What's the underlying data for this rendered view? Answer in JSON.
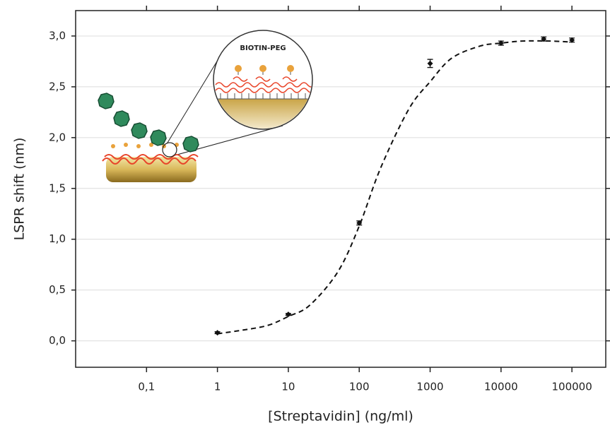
{
  "chart_data": {
    "type": "scatter",
    "x_label": "[Streptavidin]  (ng/ml)",
    "y_label": "LSPR shift  (nm)",
    "x_scale": "log",
    "xlim": [
      0.01,
      300000
    ],
    "ylim": [
      -0.26,
      3.25
    ],
    "xticks": [
      {
        "value": 0.1,
        "label": "0,1"
      },
      1,
      10,
      100,
      1000,
      10000,
      100000
    ],
    "yticks": [
      {
        "value": 0,
        "label": "0,0"
      },
      {
        "value": 0.5,
        "label": "0,5"
      },
      {
        "value": 1,
        "label": "1,0"
      },
      {
        "value": 1.5,
        "label": "1,5"
      },
      {
        "value": 2,
        "label": "2,0"
      },
      {
        "value": 2.5,
        "label": "2,5"
      },
      {
        "value": 3,
        "label": "3,0"
      }
    ],
    "grid": true,
    "color": "#111111",
    "x": [
      1,
      10,
      100,
      1000,
      10000,
      40000,
      100000
    ],
    "values": [
      0.08,
      0.26,
      1.16,
      2.73,
      2.93,
      2.97,
      2.96
    ],
    "errors": [
      0.01,
      0.01,
      0.02,
      0.04,
      0.02,
      0.02,
      0.02
    ],
    "fit": {
      "style": "dashed",
      "x": [
        1,
        2,
        5,
        10,
        20,
        50,
        100,
        200,
        500,
        1000,
        2000,
        5000,
        10000,
        20000,
        50000,
        100000
      ],
      "values": [
        0.07,
        0.1,
        0.15,
        0.24,
        0.35,
        0.68,
        1.13,
        1.7,
        2.28,
        2.55,
        2.78,
        2.9,
        2.93,
        2.95,
        2.95,
        2.94
      ]
    },
    "inset_label": "BIOTIN-PEG"
  }
}
